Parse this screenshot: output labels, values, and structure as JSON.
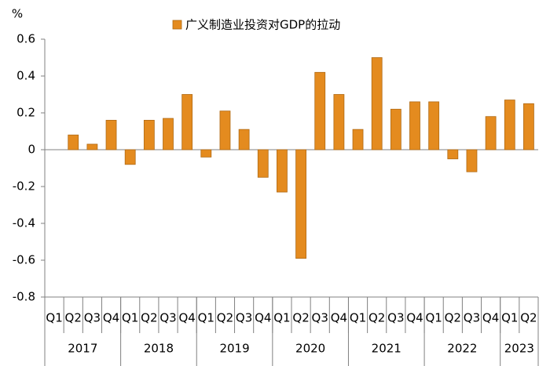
{
  "chart_data": {
    "type": "bar",
    "unit_label": "%",
    "categories": [
      "Q1",
      "Q2",
      "Q3",
      "Q4",
      "Q1",
      "Q2",
      "Q3",
      "Q4",
      "Q1",
      "Q2",
      "Q3",
      "Q4",
      "Q1",
      "Q2",
      "Q3",
      "Q4",
      "Q1",
      "Q2",
      "Q3",
      "Q4",
      "Q1",
      "Q2",
      "Q3",
      "Q4",
      "Q1",
      "Q2"
    ],
    "groups": [
      {
        "label": "2017",
        "size": 4
      },
      {
        "label": "2018",
        "size": 4
      },
      {
        "label": "2019",
        "size": 4
      },
      {
        "label": "2020",
        "size": 4
      },
      {
        "label": "2021",
        "size": 4
      },
      {
        "label": "2022",
        "size": 4
      },
      {
        "label": "2023",
        "size": 2
      }
    ],
    "series": [
      {
        "name": "广义制造业投资对GDP的拉动",
        "color": "#e48b1f",
        "values": [
          null,
          0.08,
          0.03,
          0.16,
          -0.08,
          0.16,
          0.17,
          0.3,
          -0.04,
          0.21,
          0.11,
          -0.15,
          -0.23,
          -0.59,
          0.42,
          0.3,
          0.11,
          0.5,
          0.22,
          0.26,
          0.26,
          -0.05,
          -0.12,
          0.18,
          0.27,
          0.25
        ]
      }
    ],
    "ylim": [
      -0.8,
      0.6
    ],
    "yticks": [
      -0.8,
      -0.6,
      -0.4,
      -0.2,
      0,
      0.2,
      0.4,
      0.6
    ],
    "legend": "top"
  }
}
